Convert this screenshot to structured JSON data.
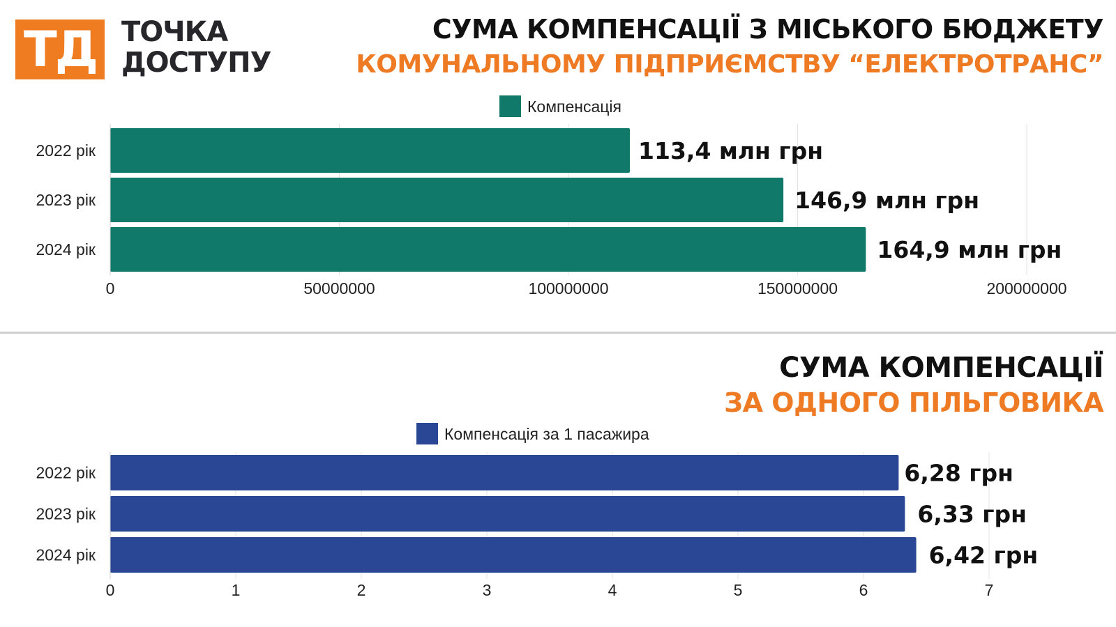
{
  "logo": {
    "mark": "ТД",
    "line1": "ТОЧКА",
    "line2": "ДОСТУПУ",
    "color": "#f07c22"
  },
  "chart1_header": {
    "title": "СУМА КОМПЕНСАЦІЇ З МІСЬКОГО БЮДЖЕТУ",
    "subtitle": "КОМУНАЛЬНОМУ ПІДПРИЄМСТВУ “ЕЛЕКТРОТРАНС”"
  },
  "chart2_header": {
    "title": "СУМА КОМПЕНСАЦІЇ",
    "subtitle": "ЗА ОДНОГО ПІЛЬГОВИКА"
  },
  "chart_data": [
    {
      "type": "bar",
      "orientation": "horizontal",
      "title": "СУМА КОМПЕНСАЦІЇ З МІСЬКОГО БЮДЖЕТУ",
      "subtitle": "КОМУНАЛЬНОМУ ПІДПРИЄМСТВУ “ЕЛЕКТРОТРАНС”",
      "categories": [
        "2022 рік",
        "2023 рік",
        "2024 рік"
      ],
      "series": [
        {
          "name": "Компенсація",
          "values": [
            113400000,
            146900000,
            164900000
          ],
          "color": "#11796a"
        }
      ],
      "data_labels": [
        "113,4 млн грн",
        "146,9 млн грн",
        "164,9 млн грн"
      ],
      "xlim": [
        0,
        200000000
      ],
      "xticks": [
        0,
        50000000,
        100000000,
        150000000,
        200000000
      ],
      "xtick_labels": [
        "0",
        "50000000",
        "100000000",
        "150000000",
        "200000000"
      ],
      "grid": "vertical",
      "legend": "top-center"
    },
    {
      "type": "bar",
      "orientation": "horizontal",
      "title": "СУМА КОМПЕНСАЦІЇ",
      "subtitle": "ЗА ОДНОГО ПІЛЬГОВИКА",
      "categories": [
        "2022 рік",
        "2023 рік",
        "2024 рік"
      ],
      "series": [
        {
          "name": "Компенсація за 1 пасажира",
          "values": [
            6.28,
            6.33,
            6.42
          ],
          "color": "#2a4796"
        }
      ],
      "data_labels": [
        "6,28 грн",
        "6,33 грн",
        "6,42 грн"
      ],
      "xlim": [
        0,
        7
      ],
      "xticks": [
        0,
        1,
        2,
        3,
        4,
        5,
        6,
        7
      ],
      "xtick_labels": [
        "0",
        "1",
        "2",
        "3",
        "4",
        "5",
        "6",
        "7"
      ],
      "grid": "vertical",
      "legend": "top-center"
    }
  ]
}
